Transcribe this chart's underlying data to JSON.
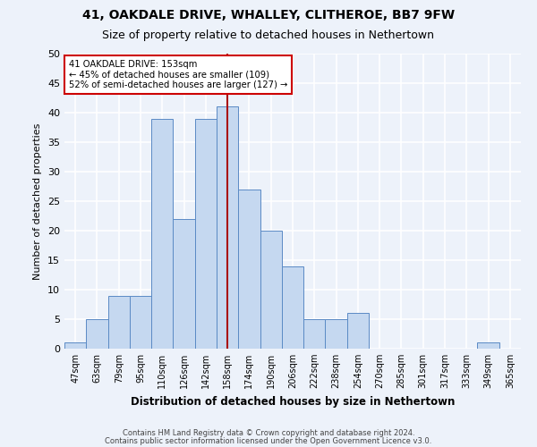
{
  "title1": "41, OAKDALE DRIVE, WHALLEY, CLITHEROE, BB7 9FW",
  "title2": "Size of property relative to detached houses in Nethertown",
  "xlabel": "Distribution of detached houses by size in Nethertown",
  "ylabel": "Number of detached properties",
  "categories": [
    "47sqm",
    "63sqm",
    "79sqm",
    "95sqm",
    "110sqm",
    "126sqm",
    "142sqm",
    "158sqm",
    "174sqm",
    "190sqm",
    "206sqm",
    "222sqm",
    "238sqm",
    "254sqm",
    "270sqm",
    "285sqm",
    "301sqm",
    "317sqm",
    "333sqm",
    "349sqm",
    "365sqm"
  ],
  "values": [
    1,
    5,
    9,
    9,
    39,
    22,
    39,
    41,
    27,
    20,
    14,
    5,
    5,
    6,
    0,
    0,
    0,
    0,
    0,
    1,
    0
  ],
  "bar_color": "#c5d8f0",
  "bar_edgecolor": "#5b8ac5",
  "reference_line_x": 7,
  "annotation_text1": "41 OAKDALE DRIVE: 153sqm",
  "annotation_text2": "← 45% of detached houses are smaller (109)",
  "annotation_text3": "52% of semi-detached houses are larger (127) →",
  "annotation_box_color": "#ffffff",
  "annotation_box_edgecolor": "#cc0000",
  "vline_color": "#aa1111",
  "ylim": [
    0,
    50
  ],
  "yticks": [
    0,
    5,
    10,
    15,
    20,
    25,
    30,
    35,
    40,
    45,
    50
  ],
  "footer1": "Contains HM Land Registry data © Crown copyright and database right 2024.",
  "footer2": "Contains public sector information licensed under the Open Government Licence v3.0.",
  "background_color": "#edf2fa",
  "grid_color": "#ffffff",
  "title1_fontsize": 10,
  "title2_fontsize": 9
}
